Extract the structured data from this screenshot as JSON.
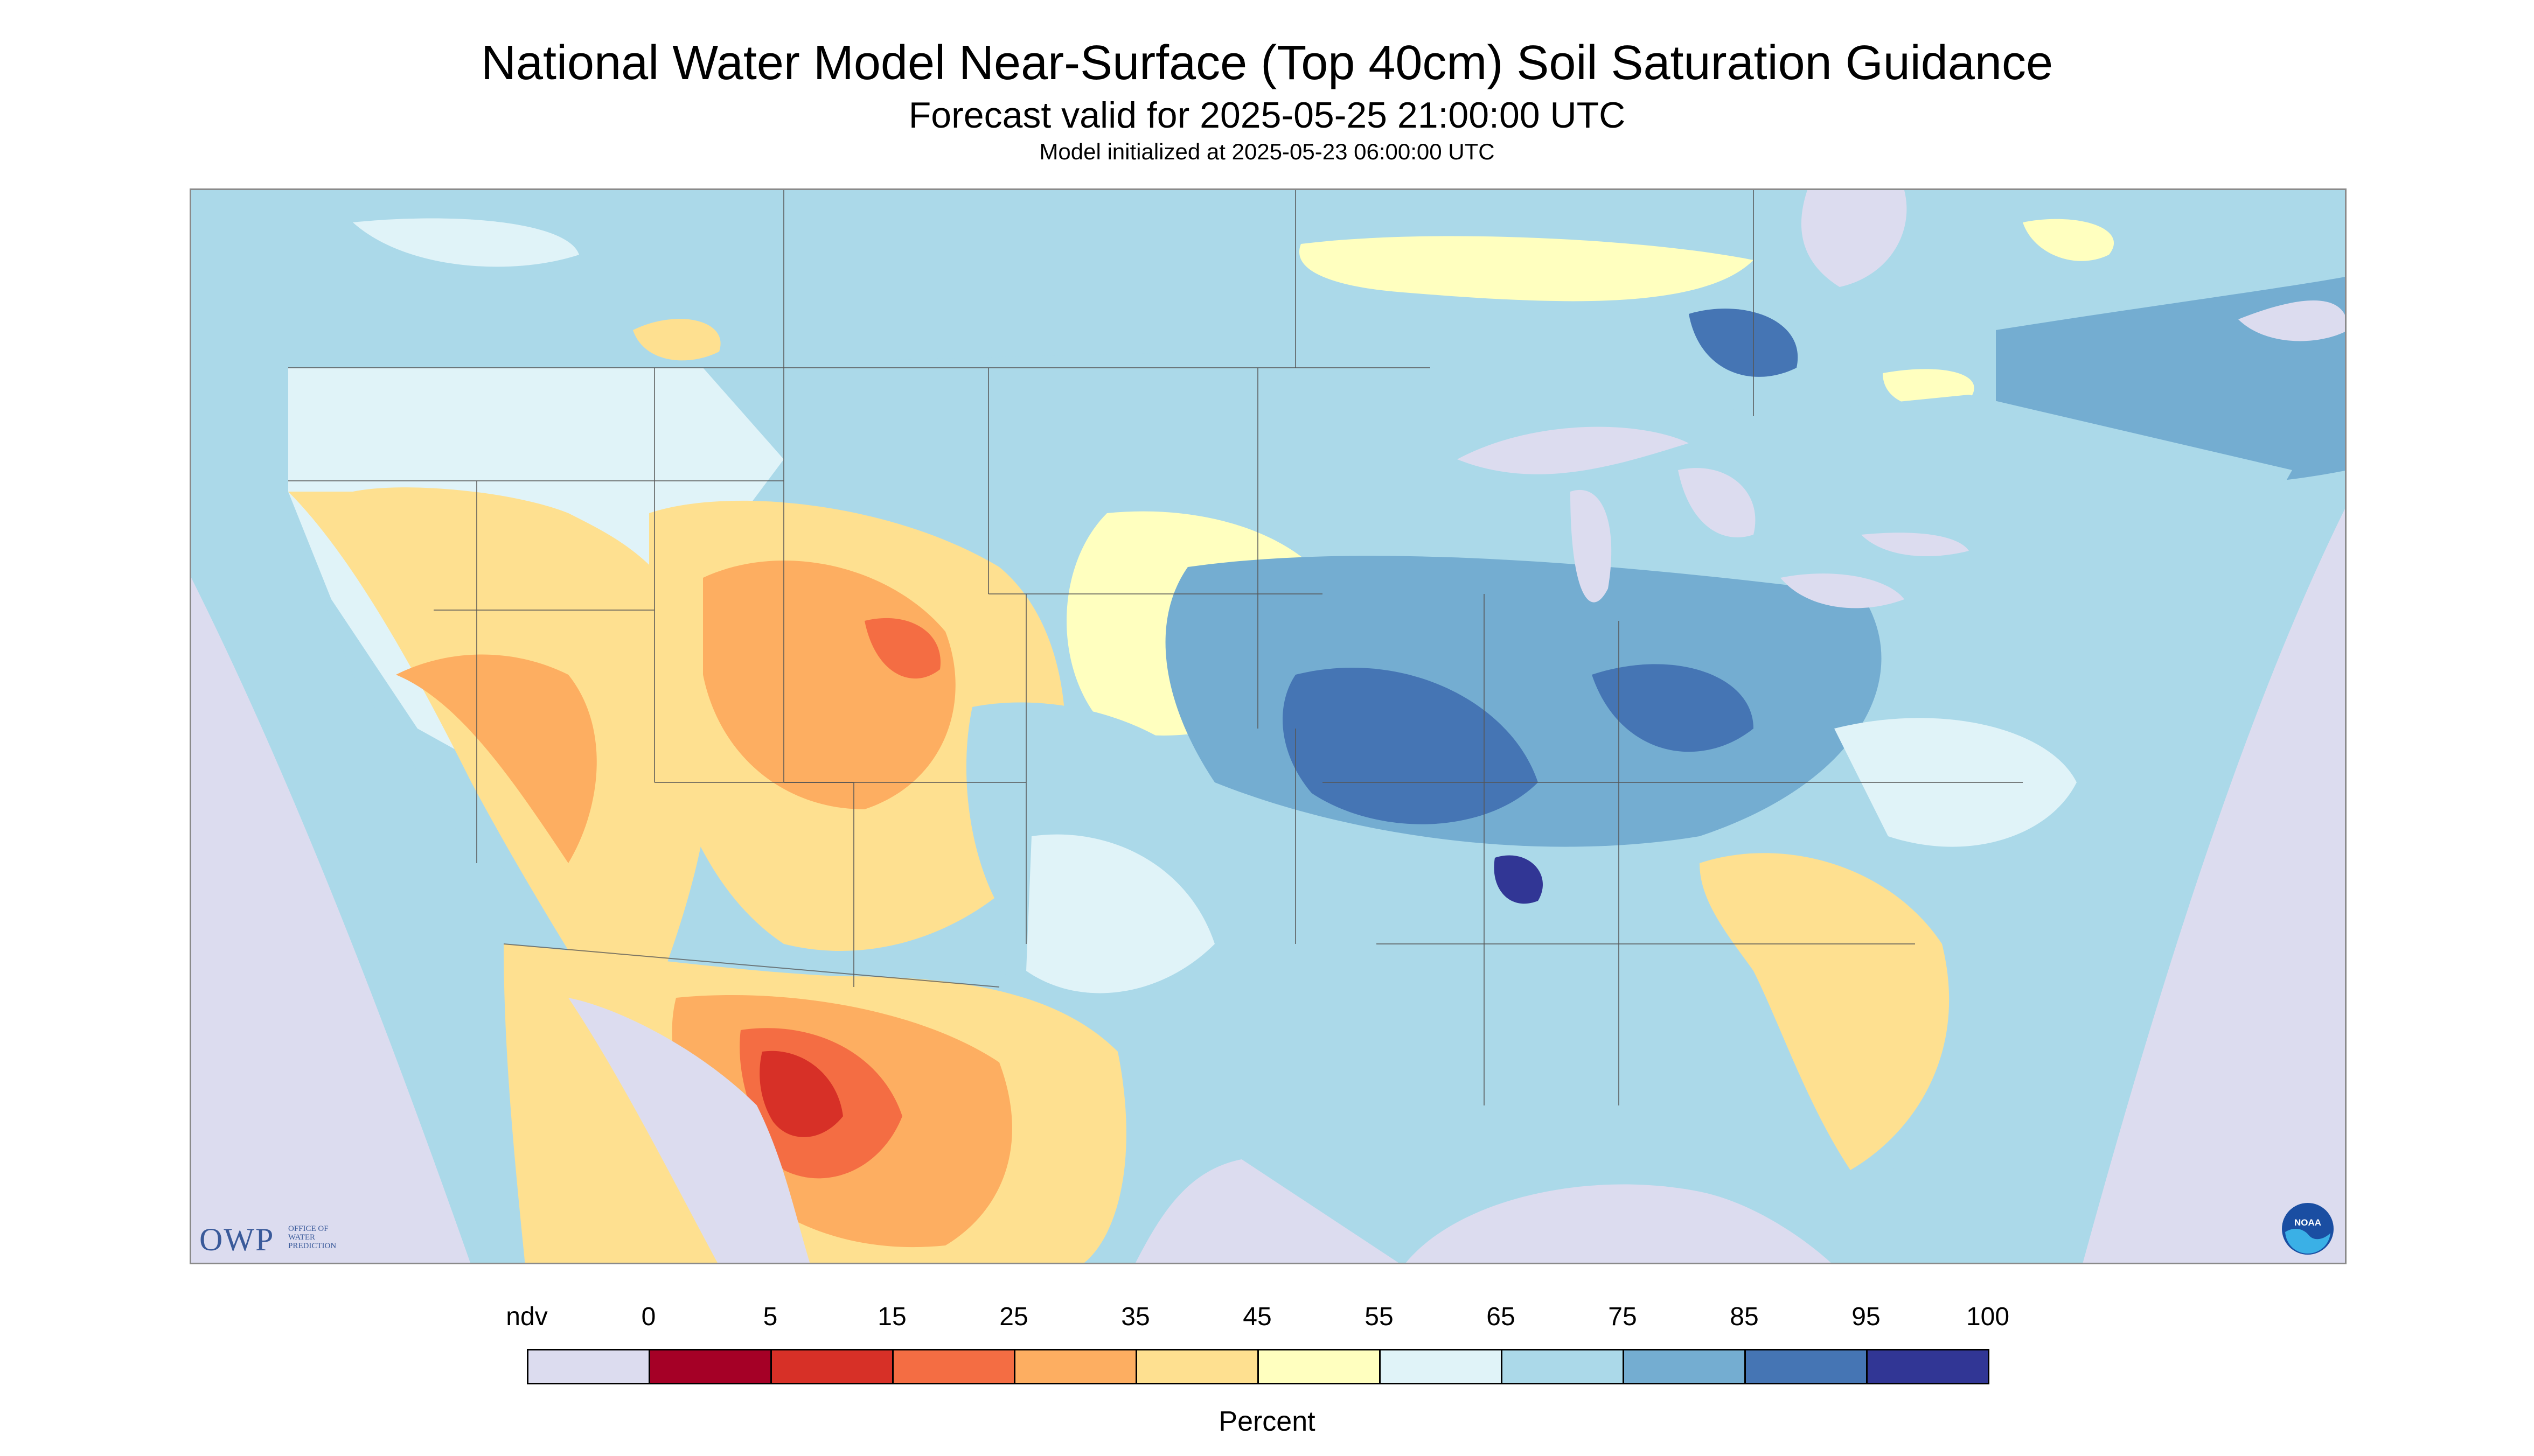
{
  "header": {
    "title": "National Water Model Near-Surface (Top 40cm) Soil Saturation Guidance",
    "subtitle": "Forecast valid for 2025-05-25 21:00:00 UTC",
    "init_line": "Model initialized at 2025-05-23 06:00:00 UTC"
  },
  "logos": {
    "owp_text": "OWP",
    "owp_subtext": [
      "OFFICE OF",
      "WATER",
      "PREDICTION"
    ],
    "noaa_text": "NOAA"
  },
  "legend": {
    "ndv_label": "ndv",
    "ticks": [
      "0",
      "5",
      "15",
      "25",
      "35",
      "45",
      "55",
      "65",
      "75",
      "85",
      "95",
      "100"
    ],
    "unit": "Percent",
    "colors": {
      "ndv": "#dcdcef",
      "bins": [
        "#a50026",
        "#d73027",
        "#f46d43",
        "#fdae61",
        "#fee090",
        "#ffffbf",
        "#e0f3f8",
        "#abd9e9",
        "#74add1",
        "#4575b4",
        "#313695"
      ]
    }
  },
  "map": {
    "colors": {
      "no_data": "#dcdcef",
      "water": "#dcdcef",
      "dry_core": "#d73027",
      "dry": "#f46d43",
      "moderately_dry": "#fdae61",
      "dryish": "#fee090",
      "neutral": "#ffffbf",
      "wetish": "#e0f3f8",
      "moist": "#abd9e9",
      "wet": "#74add1",
      "very_wet": "#4575b4",
      "saturated": "#313695"
    }
  }
}
